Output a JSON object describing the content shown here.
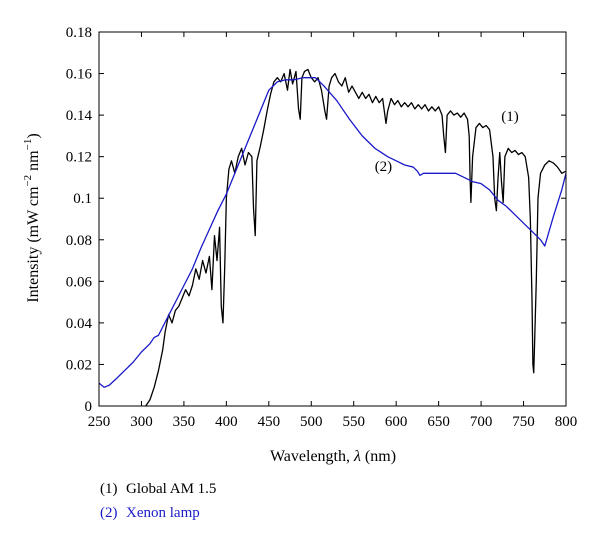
{
  "chart_data": {
    "type": "line",
    "xlabel_main": "Wavelength, ",
    "xlabel_symbol": "λ",
    "xlabel_unit": " (nm)",
    "ylabel_main": "Intensity (mW cm",
    "ylabel_exp1": "−2",
    "ylabel_mid": " nm",
    "ylabel_exp2": "−1",
    "ylabel_end": ")",
    "xlim": [
      250,
      800
    ],
    "ylim": [
      0,
      0.18
    ],
    "x_ticks": [
      250,
      300,
      350,
      400,
      450,
      500,
      550,
      600,
      650,
      700,
      750,
      800
    ],
    "y_ticks": [
      0,
      0.02,
      0.04,
      0.06,
      0.08,
      0.1,
      0.12,
      0.14,
      0.16,
      0.18
    ],
    "y_tick_labels": [
      "0",
      "0.02",
      "0.04",
      "0.06",
      "0.08",
      "0.1",
      "0.12",
      "0.14",
      "0.16",
      "0.18"
    ],
    "grid": false,
    "series": [
      {
        "name": "Global AM 1.5",
        "label": "(1)",
        "color": "#000000",
        "points": [
          [
            305,
            0.0
          ],
          [
            310,
            0.003
          ],
          [
            315,
            0.009
          ],
          [
            320,
            0.017
          ],
          [
            325,
            0.027
          ],
          [
            328,
            0.036
          ],
          [
            332,
            0.044
          ],
          [
            336,
            0.04
          ],
          [
            340,
            0.046
          ],
          [
            344,
            0.048
          ],
          [
            348,
            0.052
          ],
          [
            352,
            0.056
          ],
          [
            356,
            0.053
          ],
          [
            360,
            0.058
          ],
          [
            364,
            0.066
          ],
          [
            368,
            0.061
          ],
          [
            372,
            0.07
          ],
          [
            376,
            0.064
          ],
          [
            380,
            0.072
          ],
          [
            383,
            0.056
          ],
          [
            386,
            0.082
          ],
          [
            389,
            0.07
          ],
          [
            392,
            0.086
          ],
          [
            394,
            0.048
          ],
          [
            396,
            0.04
          ],
          [
            398,
            0.066
          ],
          [
            400,
            0.1
          ],
          [
            403,
            0.114
          ],
          [
            406,
            0.118
          ],
          [
            410,
            0.112
          ],
          [
            414,
            0.12
          ],
          [
            418,
            0.124
          ],
          [
            422,
            0.116
          ],
          [
            426,
            0.122
          ],
          [
            430,
            0.12
          ],
          [
            432,
            0.095
          ],
          [
            434,
            0.082
          ],
          [
            436,
            0.118
          ],
          [
            440,
            0.125
          ],
          [
            444,
            0.133
          ],
          [
            448,
            0.142
          ],
          [
            452,
            0.15
          ],
          [
            456,
            0.156
          ],
          [
            460,
            0.158
          ],
          [
            464,
            0.156
          ],
          [
            468,
            0.16
          ],
          [
            472,
            0.152
          ],
          [
            475,
            0.162
          ],
          [
            478,
            0.155
          ],
          [
            482,
            0.161
          ],
          [
            485,
            0.143
          ],
          [
            487,
            0.138
          ],
          [
            489,
            0.158
          ],
          [
            492,
            0.161
          ],
          [
            496,
            0.162
          ],
          [
            500,
            0.158
          ],
          [
            504,
            0.156
          ],
          [
            508,
            0.158
          ],
          [
            512,
            0.152
          ],
          [
            516,
            0.142
          ],
          [
            518,
            0.138
          ],
          [
            521,
            0.154
          ],
          [
            524,
            0.158
          ],
          [
            528,
            0.16
          ],
          [
            532,
            0.156
          ],
          [
            536,
            0.154
          ],
          [
            540,
            0.158
          ],
          [
            544,
            0.151
          ],
          [
            548,
            0.154
          ],
          [
            552,
            0.151
          ],
          [
            556,
            0.148
          ],
          [
            560,
            0.151
          ],
          [
            564,
            0.148
          ],
          [
            568,
            0.15
          ],
          [
            572,
            0.146
          ],
          [
            576,
            0.149
          ],
          [
            580,
            0.146
          ],
          [
            584,
            0.148
          ],
          [
            588,
            0.136
          ],
          [
            590,
            0.142
          ],
          [
            594,
            0.148
          ],
          [
            598,
            0.145
          ],
          [
            602,
            0.147
          ],
          [
            606,
            0.144
          ],
          [
            610,
            0.146
          ],
          [
            614,
            0.144
          ],
          [
            618,
            0.146
          ],
          [
            622,
            0.143
          ],
          [
            626,
            0.145
          ],
          [
            630,
            0.143
          ],
          [
            634,
            0.145
          ],
          [
            638,
            0.142
          ],
          [
            642,
            0.144
          ],
          [
            646,
            0.142
          ],
          [
            650,
            0.144
          ],
          [
            654,
            0.14
          ],
          [
            656,
            0.13
          ],
          [
            658,
            0.122
          ],
          [
            660,
            0.14
          ],
          [
            664,
            0.142
          ],
          [
            668,
            0.14
          ],
          [
            672,
            0.141
          ],
          [
            676,
            0.139
          ],
          [
            680,
            0.141
          ],
          [
            684,
            0.138
          ],
          [
            686,
            0.13
          ],
          [
            687,
            0.11
          ],
          [
            688,
            0.098
          ],
          [
            690,
            0.12
          ],
          [
            694,
            0.134
          ],
          [
            698,
            0.136
          ],
          [
            702,
            0.134
          ],
          [
            706,
            0.135
          ],
          [
            710,
            0.133
          ],
          [
            714,
            0.12
          ],
          [
            716,
            0.1
          ],
          [
            718,
            0.094
          ],
          [
            720,
            0.11
          ],
          [
            722,
            0.122
          ],
          [
            724,
            0.108
          ],
          [
            726,
            0.098
          ],
          [
            728,
            0.12
          ],
          [
            732,
            0.124
          ],
          [
            736,
            0.122
          ],
          [
            740,
            0.123
          ],
          [
            744,
            0.121
          ],
          [
            748,
            0.122
          ],
          [
            752,
            0.12
          ],
          [
            756,
            0.11
          ],
          [
            758,
            0.09
          ],
          [
            760,
            0.05
          ],
          [
            761,
            0.02
          ],
          [
            762,
            0.016
          ],
          [
            763,
            0.03
          ],
          [
            765,
            0.06
          ],
          [
            767,
            0.1
          ],
          [
            770,
            0.112
          ],
          [
            775,
            0.116
          ],
          [
            780,
            0.118
          ],
          [
            785,
            0.117
          ],
          [
            790,
            0.115
          ],
          [
            795,
            0.112
          ],
          [
            800,
            0.113
          ]
        ]
      },
      {
        "name": "Xenon lamp",
        "label": "(2)",
        "color": "#1a1ac8",
        "points": [
          [
            250,
            0.011
          ],
          [
            256,
            0.009
          ],
          [
            262,
            0.01
          ],
          [
            270,
            0.013
          ],
          [
            280,
            0.017
          ],
          [
            290,
            0.021
          ],
          [
            300,
            0.026
          ],
          [
            310,
            0.03
          ],
          [
            315,
            0.033
          ],
          [
            320,
            0.034
          ],
          [
            325,
            0.038
          ],
          [
            330,
            0.042
          ],
          [
            340,
            0.05
          ],
          [
            350,
            0.058
          ],
          [
            360,
            0.066
          ],
          [
            370,
            0.076
          ],
          [
            380,
            0.085
          ],
          [
            390,
            0.094
          ],
          [
            400,
            0.102
          ],
          [
            410,
            0.112
          ],
          [
            420,
            0.122
          ],
          [
            430,
            0.132
          ],
          [
            440,
            0.142
          ],
          [
            450,
            0.152
          ],
          [
            460,
            0.156
          ],
          [
            470,
            0.157
          ],
          [
            480,
            0.157
          ],
          [
            490,
            0.158
          ],
          [
            500,
            0.158
          ],
          [
            505,
            0.158
          ],
          [
            515,
            0.154
          ],
          [
            530,
            0.147
          ],
          [
            545,
            0.138
          ],
          [
            560,
            0.13
          ],
          [
            575,
            0.124
          ],
          [
            590,
            0.12
          ],
          [
            600,
            0.118
          ],
          [
            610,
            0.116
          ],
          [
            620,
            0.115
          ],
          [
            625,
            0.113
          ],
          [
            628,
            0.111
          ],
          [
            632,
            0.112
          ],
          [
            650,
            0.112
          ],
          [
            670,
            0.112
          ],
          [
            680,
            0.11
          ],
          [
            690,
            0.108
          ],
          [
            700,
            0.107
          ],
          [
            710,
            0.104
          ],
          [
            720,
            0.099
          ],
          [
            730,
            0.096
          ],
          [
            740,
            0.092
          ],
          [
            750,
            0.088
          ],
          [
            760,
            0.084
          ],
          [
            770,
            0.08
          ],
          [
            775,
            0.077
          ],
          [
            785,
            0.091
          ],
          [
            795,
            0.104
          ],
          [
            800,
            0.112
          ]
        ]
      }
    ],
    "annotations": [
      {
        "series": 0,
        "text": "(1)",
        "x": 734,
        "y": 0.14
      },
      {
        "series": 1,
        "text": "(2)",
        "x": 585,
        "y": 0.116
      }
    ]
  },
  "legend": [
    {
      "num": "(1)",
      "text": "Global AM 1.5"
    },
    {
      "num": "(2)",
      "text": "Xenon lamp"
    }
  ]
}
